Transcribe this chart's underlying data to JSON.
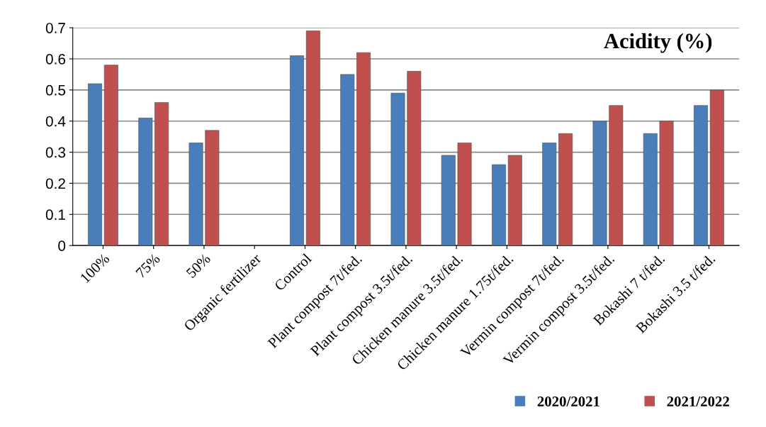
{
  "chart_data": {
    "type": "bar",
    "title": "Acidity (%)",
    "categories": [
      "100%",
      "75%",
      "50%",
      "Organic fertilizer",
      "Control",
      "Plant compost 7t/fed.",
      "Plant compost 3.5t/fed.",
      "Chicken manure 3.5t/fed.",
      "Chicken manure 1.75t/fed.",
      "Vermin compost 7t/fed.",
      "Vermin compost 3.5t/fed.",
      "Bokashi 7 t/fed.",
      "Bokashi 3.5 t/fed."
    ],
    "series": [
      {
        "name": "2020/2021",
        "color": "#4a7ebb",
        "values": [
          0.52,
          0.41,
          0.33,
          null,
          0.61,
          0.55,
          0.49,
          0.29,
          0.26,
          0.33,
          0.4,
          0.36,
          0.45
        ]
      },
      {
        "name": "2021/2022",
        "color": "#c0504d",
        "values": [
          0.58,
          0.46,
          0.37,
          null,
          0.69,
          0.62,
          0.56,
          0.33,
          0.29,
          0.36,
          0.45,
          0.4,
          0.5
        ]
      }
    ],
    "ylim": [
      0,
      0.7
    ],
    "yticks": [
      0,
      0.1,
      0.2,
      0.3,
      0.4,
      0.5,
      0.6,
      0.7
    ],
    "grid": "y",
    "legend": "bottom right"
  }
}
